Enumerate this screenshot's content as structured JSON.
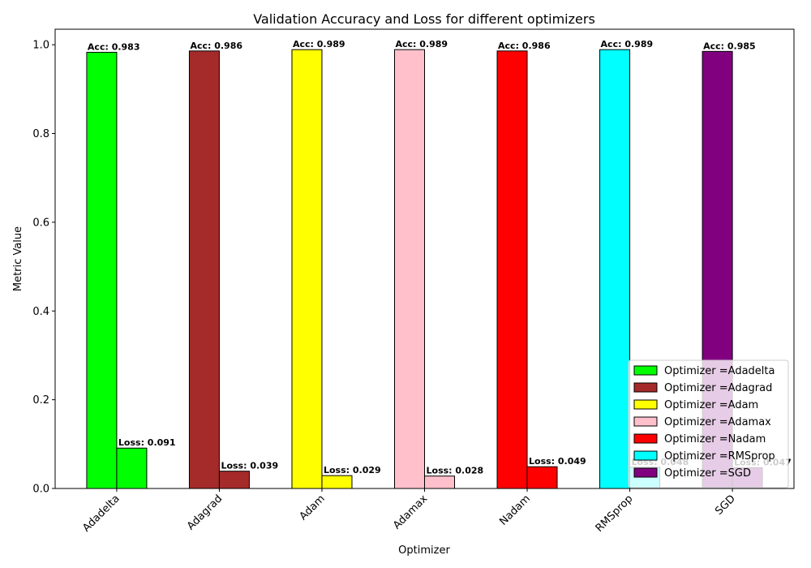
{
  "chart_data": {
    "type": "bar",
    "title": "Validation Accuracy and Loss for different optimizers",
    "xlabel": "Optimizer",
    "ylabel": "Metric Value",
    "ylim": [
      0,
      1.035
    ],
    "yticks": [
      "0.0",
      "0.2",
      "0.4",
      "0.6",
      "0.8",
      "1.0"
    ],
    "ytick_values": [
      0,
      0.2,
      0.4,
      0.6,
      0.8,
      1.0
    ],
    "categories": [
      "Adadelta",
      "Adagrad",
      "Adam",
      "Adamax",
      "Nadam",
      "RMSprop",
      "SGD"
    ],
    "accuracy": [
      0.983,
      0.986,
      0.989,
      0.989,
      0.986,
      0.989,
      0.985
    ],
    "loss": [
      0.091,
      0.039,
      0.029,
      0.028,
      0.049,
      0.048,
      0.047
    ],
    "accuracy_labels": [
      "Acc: 0.983",
      "Acc: 0.986",
      "Acc: 0.989",
      "Acc: 0.989",
      "Acc: 0.986",
      "Acc: 0.989",
      "Acc: 0.985"
    ],
    "loss_labels": [
      "Loss: 0.091",
      "Loss: 0.039",
      "Loss: 0.029",
      "Loss: 0.028",
      "Loss: 0.049",
      "Loss: 0.048",
      "Loss: 0.047"
    ],
    "colors": [
      "#00ff00",
      "#a52a2a",
      "#ffff00",
      "#ffc0cb",
      "#ff0000",
      "#00ffff",
      "#800080"
    ],
    "legend": {
      "placement": "lower-right",
      "entries": [
        "Optimizer =Adadelta",
        "Optimizer =Adagrad",
        "Optimizer =Adam",
        "Optimizer =Adamax",
        "Optimizer =Nadam",
        "Optimizer =RMSprop",
        "Optimizer =SGD"
      ]
    },
    "grid": false
  }
}
